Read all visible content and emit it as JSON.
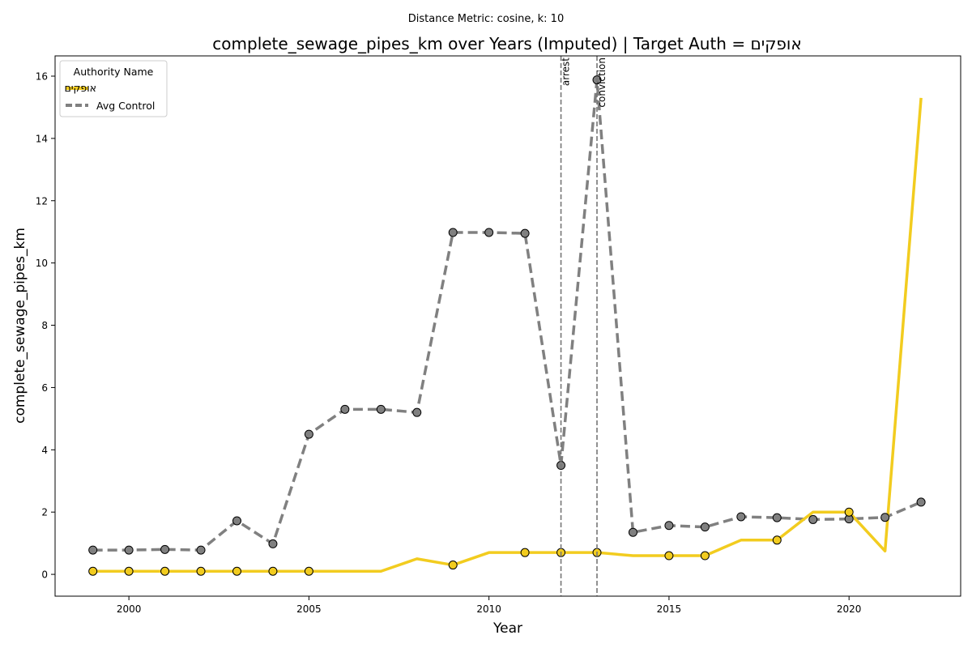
{
  "suptitle": "Distance Metric: cosine, k: 10",
  "chart_data": {
    "type": "line",
    "title": "complete_sewage_pipes_km over Years (Imputed) | Target Auth = אופקים",
    "xlabel": "Year",
    "ylabel": "complete_sewage_pipes_km",
    "xlim": [
      1997.95,
      2023.1
    ],
    "ylim": [
      -0.7,
      16.65
    ],
    "xticks": [
      2000,
      2005,
      2010,
      2015,
      2020
    ],
    "yticks": [
      0,
      2,
      4,
      6,
      8,
      10,
      12,
      14,
      16
    ],
    "grid": false,
    "legend": {
      "title": "Authority Name",
      "placement": "top-left"
    },
    "events": [
      {
        "label": "arrest",
        "x": 2012
      },
      {
        "label": "conviction",
        "x": 2013
      }
    ],
    "series": [
      {
        "name": "אופקים",
        "color": "#f2cc1f",
        "style": "solid",
        "x": [
          1999,
          2000,
          2001,
          2002,
          2003,
          2004,
          2005,
          2006,
          2007,
          2008,
          2009,
          2010,
          2011,
          2012,
          2013,
          2014,
          2015,
          2016,
          2017,
          2018,
          2019,
          2020,
          2021,
          2022
        ],
        "values": [
          0.1,
          0.1,
          0.1,
          0.1,
          0.1,
          0.1,
          0.1,
          0.1,
          0.1,
          0.5,
          0.3,
          0.7,
          0.7,
          0.7,
          0.7,
          0.6,
          0.6,
          0.6,
          1.1,
          1.1,
          2.0,
          2.0,
          0.75,
          15.3
        ],
        "markers_x": [
          1999,
          2000,
          2001,
          2002,
          2003,
          2004,
          2005,
          2009,
          2011,
          2012,
          2013,
          2015,
          2016,
          2018,
          2020
        ]
      },
      {
        "name": "Avg Control",
        "color": "#808080",
        "style": "dashed",
        "x": [
          1999,
          2000,
          2001,
          2002,
          2003,
          2004,
          2005,
          2006,
          2007,
          2008,
          2009,
          2010,
          2011,
          2012,
          2013,
          2014,
          2015,
          2016,
          2017,
          2018,
          2019,
          2020,
          2021,
          2022
        ],
        "values": [
          0.78,
          0.78,
          0.8,
          0.78,
          1.72,
          0.98,
          4.5,
          5.3,
          5.3,
          5.2,
          10.98,
          10.98,
          10.95,
          3.5,
          15.88,
          1.35,
          1.57,
          1.52,
          1.85,
          1.82,
          1.76,
          1.78,
          1.83,
          2.32
        ],
        "markers_x": [
          1999,
          2000,
          2001,
          2002,
          2003,
          2004,
          2005,
          2006,
          2007,
          2008,
          2009,
          2010,
          2011,
          2012,
          2013,
          2014,
          2015,
          2016,
          2017,
          2018,
          2019,
          2020,
          2021,
          2022
        ]
      }
    ]
  }
}
